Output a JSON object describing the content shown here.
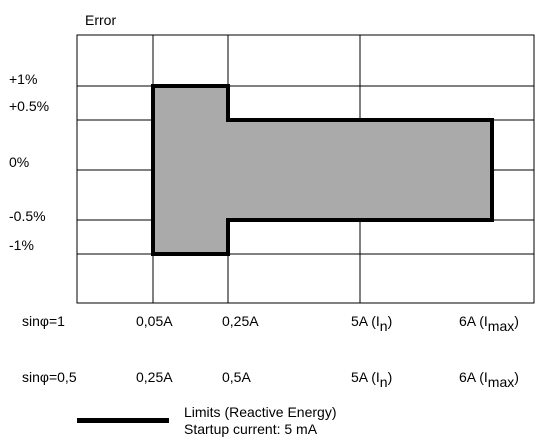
{
  "chart_data": {
    "type": "area",
    "ylabel": "Error",
    "y_ticks": [
      "+1%",
      "+0.5%",
      "0%",
      "-0.5%",
      "-1%"
    ],
    "x_positions": [
      "x1",
      "x2",
      "x3",
      "x4",
      "x5"
    ],
    "x_rows": [
      {
        "label": "sinφ=1",
        "ticks": [
          {
            "text": "0,05A",
            "sub": ""
          },
          {
            "text": "0,25A",
            "sub": ""
          },
          {
            "text": "5A (I",
            "sub": "n",
            "tail": ")"
          },
          {
            "text": "6A (I",
            "sub": "max",
            "tail": ")"
          }
        ]
      },
      {
        "label": "sinφ=0,5",
        "ticks": [
          {
            "text": "0,25A",
            "sub": ""
          },
          {
            "text": "0,5A",
            "sub": ""
          },
          {
            "text": "5A (I",
            "sub": "n",
            "tail": ")"
          },
          {
            "text": "6A (I",
            "sub": "max",
            "tail": ")"
          }
        ]
      }
    ],
    "limit_envelope": [
      {
        "x": 1,
        "upper": 1,
        "lower": -1
      },
      {
        "x": 2,
        "upper": 1,
        "lower": -1
      },
      {
        "x": 2,
        "upper": 0.5,
        "lower": -0.5
      },
      {
        "x": 4,
        "upper": 0.5,
        "lower": -0.5
      }
    ],
    "fill_color": "#aaaaaa",
    "line_color": "#000000",
    "legend": [
      {
        "label": "Limits (Reactive Energy)"
      },
      {
        "label": "Startup current: 5 mA"
      }
    ]
  }
}
